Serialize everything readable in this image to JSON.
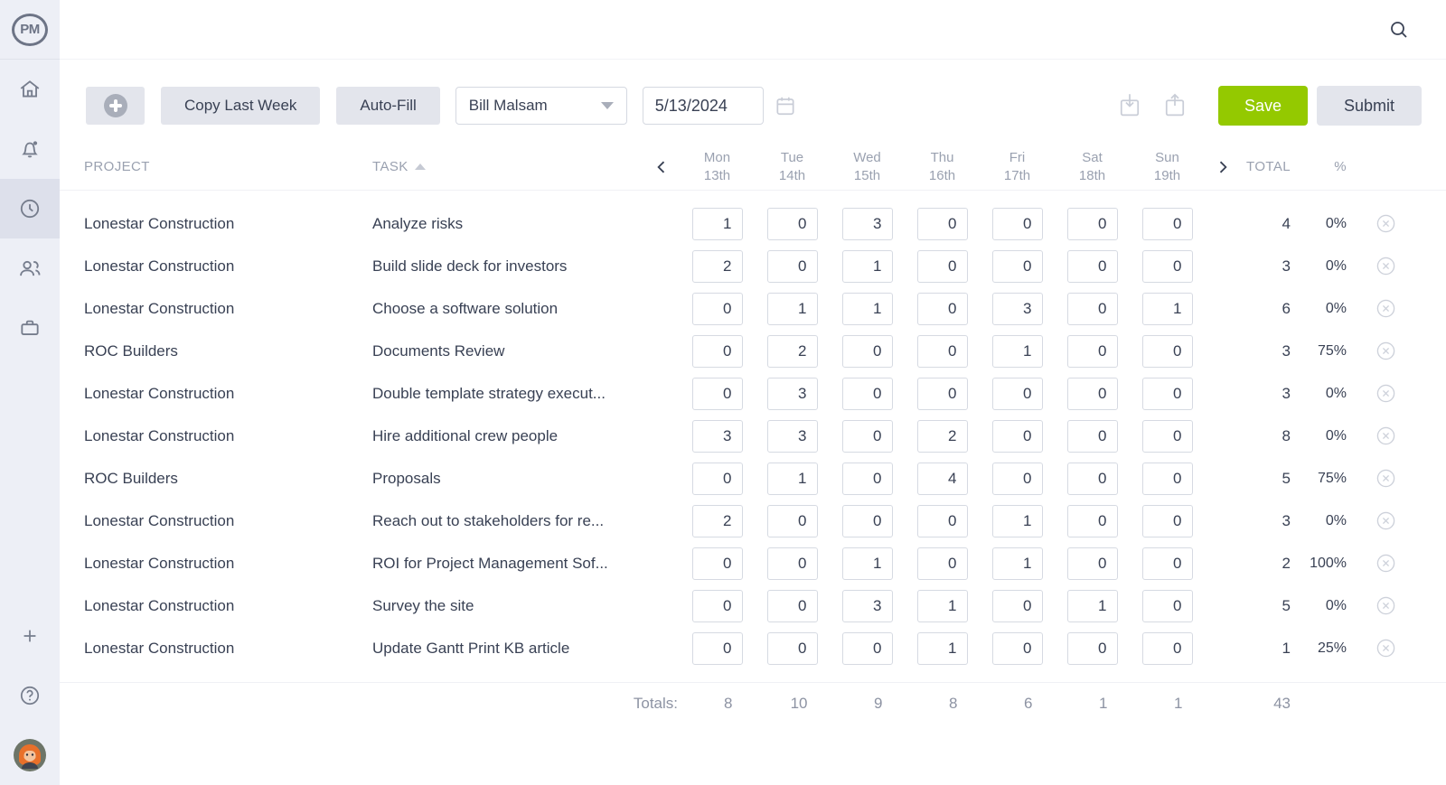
{
  "app": {
    "logo_text": "PM"
  },
  "sidebar": {
    "items": [
      {
        "id": "home",
        "icon": "home-icon"
      },
      {
        "id": "notifications",
        "icon": "bell-icon",
        "has_dot": true
      },
      {
        "id": "timesheets",
        "icon": "clock-icon",
        "active": true
      },
      {
        "id": "team",
        "icon": "users-icon"
      },
      {
        "id": "work",
        "icon": "briefcase-icon"
      },
      {
        "id": "add-new",
        "icon": "plus-icon"
      },
      {
        "id": "help",
        "icon": "question-icon"
      }
    ]
  },
  "topbar": {
    "search_icon": "magnifier"
  },
  "toolbar": {
    "add_row_label": "",
    "copy_last_week_label": "Copy Last Week",
    "auto_fill_label": "Auto-Fill",
    "user_select_value": "Bill Malsam",
    "date_value": "5/13/2024",
    "save_label": "Save",
    "submit_label": "Submit"
  },
  "table": {
    "columns": {
      "project": "PROJECT",
      "task": "TASK",
      "total": "TOTAL",
      "percent": "%"
    },
    "days": [
      {
        "label": "Mon",
        "date": "13th"
      },
      {
        "label": "Tue",
        "date": "14th"
      },
      {
        "label": "Wed",
        "date": "15th"
      },
      {
        "label": "Thu",
        "date": "16th"
      },
      {
        "label": "Fri",
        "date": "17th"
      },
      {
        "label": "Sat",
        "date": "18th"
      },
      {
        "label": "Sun",
        "date": "19th"
      }
    ],
    "rows": [
      {
        "project": "Lonestar Construction",
        "task": "Analyze risks",
        "hours": [
          1,
          0,
          3,
          0,
          0,
          0,
          0
        ],
        "total": 4,
        "percent": "0%"
      },
      {
        "project": "Lonestar Construction",
        "task": "Build slide deck for investors",
        "hours": [
          2,
          0,
          1,
          0,
          0,
          0,
          0
        ],
        "total": 3,
        "percent": "0%"
      },
      {
        "project": "Lonestar Construction",
        "task": "Choose a software solution",
        "hours": [
          0,
          1,
          1,
          0,
          3,
          0,
          1
        ],
        "total": 6,
        "percent": "0%"
      },
      {
        "project": "ROC Builders",
        "task": "Documents Review",
        "hours": [
          0,
          2,
          0,
          0,
          1,
          0,
          0
        ],
        "total": 3,
        "percent": "75%"
      },
      {
        "project": "Lonestar Construction",
        "task": "Double template strategy execut...",
        "hours": [
          0,
          3,
          0,
          0,
          0,
          0,
          0
        ],
        "total": 3,
        "percent": "0%"
      },
      {
        "project": "Lonestar Construction",
        "task": "Hire additional crew people",
        "hours": [
          3,
          3,
          0,
          2,
          0,
          0,
          0
        ],
        "total": 8,
        "percent": "0%"
      },
      {
        "project": "ROC Builders",
        "task": "Proposals",
        "hours": [
          0,
          1,
          0,
          4,
          0,
          0,
          0
        ],
        "total": 5,
        "percent": "75%"
      },
      {
        "project": "Lonestar Construction",
        "task": "Reach out to stakeholders for re...",
        "hours": [
          2,
          0,
          0,
          0,
          1,
          0,
          0
        ],
        "total": 3,
        "percent": "0%"
      },
      {
        "project": "Lonestar Construction",
        "task": "ROI for Project Management Sof...",
        "hours": [
          0,
          0,
          1,
          0,
          1,
          0,
          0
        ],
        "total": 2,
        "percent": "100%"
      },
      {
        "project": "Lonestar Construction",
        "task": "Survey the site",
        "hours": [
          0,
          0,
          3,
          1,
          0,
          1,
          0
        ],
        "total": 5,
        "percent": "0%"
      },
      {
        "project": "Lonestar Construction",
        "task": "Update Gantt Print KB article",
        "hours": [
          0,
          0,
          0,
          1,
          0,
          0,
          0
        ],
        "total": 1,
        "percent": "25%"
      }
    ],
    "totals": {
      "label": "Totals:",
      "day_totals": [
        8,
        10,
        9,
        8,
        6,
        1,
        1
      ],
      "grand_total": 43
    }
  },
  "colors": {
    "accent_green": "#94c900",
    "sidebar_bg": "#edeff6",
    "sidebar_active_bg": "#dde0eb",
    "button_gray_bg": "#e3e5ec",
    "text_dark": "#394154",
    "text_gray": "#9aa1b0",
    "input_border": "#d6dae2"
  }
}
